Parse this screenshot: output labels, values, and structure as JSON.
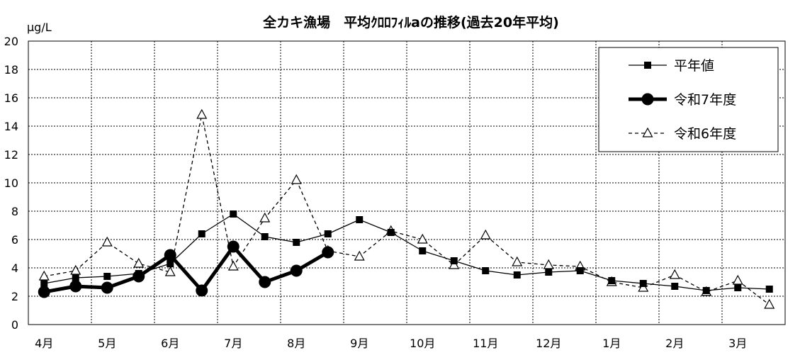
{
  "chart_data": {
    "type": "line",
    "title": "全カキ漁場　平均ｸﾛﾛﾌｨﾙaの推移(過去20年平均)",
    "ylabel": "μg/L",
    "ylim": [
      0,
      20
    ],
    "yticks": [
      0,
      2,
      4,
      6,
      8,
      10,
      12,
      14,
      16,
      18,
      20
    ],
    "xlim": [
      0,
      12
    ],
    "month_labels": [
      "4月",
      "5月",
      "6月",
      "7月",
      "8月",
      "9月",
      "10月",
      "11月",
      "12月",
      "1月",
      "2月",
      "3月"
    ],
    "grid": true,
    "legend_position": "top-right",
    "series": [
      {
        "name": "平年値",
        "marker": "square",
        "style": "solid",
        "x": [
          0,
          0.5,
          1,
          1.5,
          2,
          2.5,
          3,
          3.5,
          4,
          4.5,
          5,
          5.5,
          6,
          6.5,
          7,
          7.5,
          8,
          8.5,
          9,
          9.5,
          10,
          10.5,
          11,
          11.5
        ],
        "values": [
          2.9,
          3.3,
          3.4,
          3.6,
          4.3,
          6.4,
          7.8,
          6.2,
          5.8,
          6.4,
          7.4,
          6.5,
          5.2,
          4.5,
          3.8,
          3.5,
          3.7,
          3.8,
          3.1,
          2.9,
          2.7,
          2.4,
          2.6,
          2.5
        ]
      },
      {
        "name": "令和7年度",
        "marker": "circle",
        "style": "bold",
        "x": [
          0,
          0.5,
          1,
          1.5,
          2,
          2.5,
          3,
          3.5,
          4,
          4.5
        ],
        "values": [
          2.3,
          2.7,
          2.6,
          3.4,
          4.9,
          2.4,
          5.5,
          3.0,
          3.8,
          5.1
        ]
      },
      {
        "name": "令和6年度",
        "marker": "triangle",
        "style": "dashed",
        "x": [
          0,
          0.5,
          1,
          1.5,
          2,
          2.5,
          3,
          3.5,
          4,
          4.5,
          5,
          5.5,
          6,
          6.5,
          7,
          7.5,
          8,
          8.5,
          9,
          9.5,
          10,
          10.5,
          11,
          11.5
        ],
        "values": [
          3.4,
          3.8,
          5.8,
          4.3,
          3.7,
          14.8,
          4.1,
          7.5,
          10.2,
          5.2,
          4.8,
          6.6,
          6.0,
          4.2,
          6.3,
          4.4,
          4.2,
          4.1,
          3.0,
          2.6,
          3.5,
          2.3,
          3.1,
          1.4
        ]
      }
    ]
  }
}
